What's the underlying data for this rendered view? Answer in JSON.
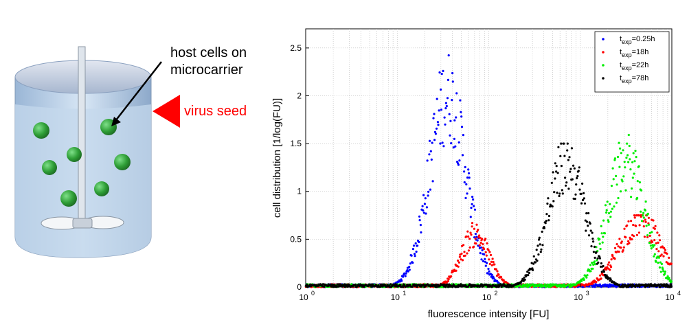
{
  "schematic": {
    "label_cells": [
      "host cells on",
      "microcarrier"
    ],
    "label_virus": "virus seed",
    "colors": {
      "arrow": "#ff0000",
      "beads": "#2e9e36",
      "liquid": "#bcd3ea"
    }
  },
  "chart_data": {
    "type": "scatter",
    "xlabel": "fluorescence intensity [FU]",
    "ylabel": "cell distribution [1/log(FU)]",
    "xscale": "log",
    "xlim": [
      1,
      10000
    ],
    "ylim": [
      0,
      2.7
    ],
    "x_ticks": [
      {
        "base": "10",
        "exp": "0"
      },
      {
        "base": "10",
        "exp": "1"
      },
      {
        "base": "10",
        "exp": "2"
      },
      {
        "base": "10",
        "exp": "3"
      },
      {
        "base": "10",
        "exp": "4"
      }
    ],
    "y_ticks": [
      "0",
      "0.5",
      "1",
      "1.5",
      "2",
      "2.5"
    ],
    "y_tick_values": [
      0,
      0.5,
      1,
      1.5,
      2,
      2.5
    ],
    "grid": true,
    "legend_position": "top-right",
    "series": [
      {
        "label_main": "t",
        "label_sub": "exp",
        "label_rest": "=0.25h",
        "color": "#0000ff",
        "peak_log10_x": 1.55,
        "peak_y": 2.0,
        "spread": 0.2,
        "max_y": 2.62
      },
      {
        "label_main": "t",
        "label_sub": "exp",
        "label_rest": "=18h",
        "color": "#ff0000",
        "peaks": [
          {
            "log10_x": 1.85,
            "y": 0.55,
            "spread": 0.15
          },
          {
            "log10_x": 3.65,
            "y": 0.7,
            "spread": 0.22
          }
        ],
        "max_y": 0.75
      },
      {
        "label_main": "t",
        "label_sub": "exp",
        "label_rest": "=22h",
        "color": "#00ee00",
        "peak_log10_x": 3.5,
        "peak_y": 1.3,
        "spread": 0.2,
        "max_y": 1.6
      },
      {
        "label_main": "t",
        "label_sub": "exp",
        "label_rest": "=78h",
        "color": "#000000",
        "peak_log10_x": 2.85,
        "peak_y": 1.3,
        "spread": 0.2,
        "max_y": 1.5
      }
    ]
  }
}
